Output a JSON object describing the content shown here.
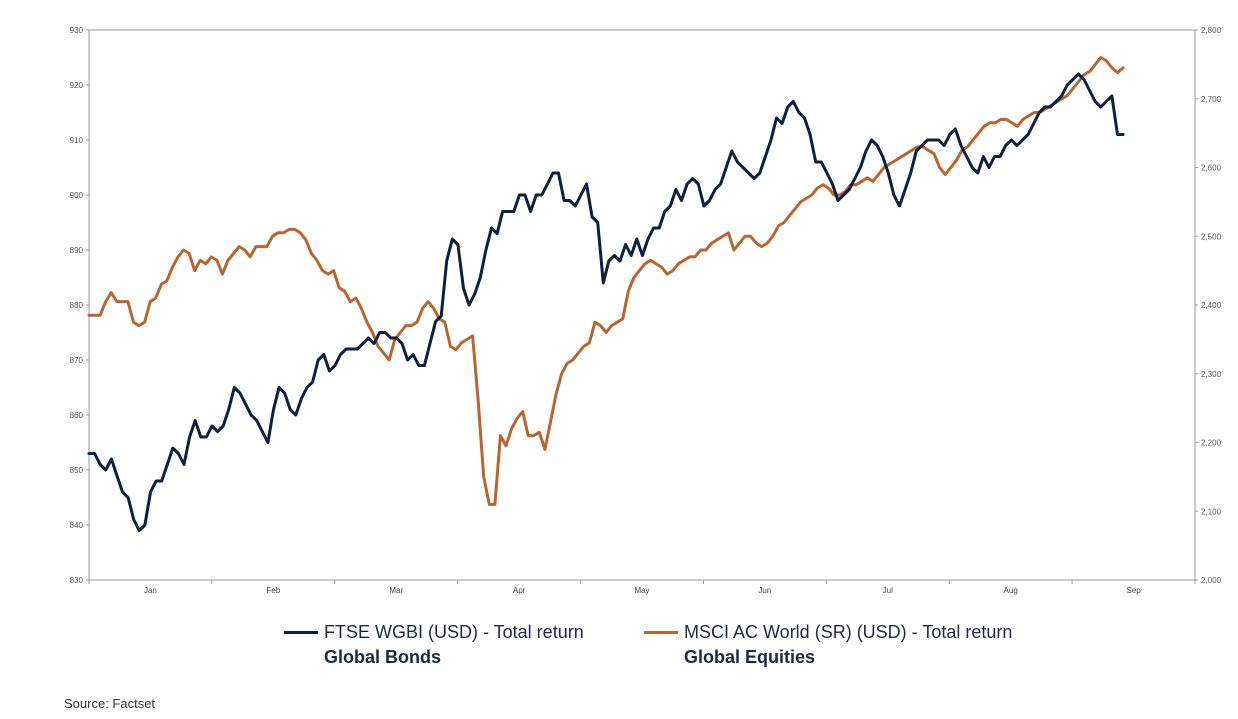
{
  "chart_data": {
    "type": "line",
    "title": "",
    "x_labels": [
      "Jan",
      "Feb",
      "Mar",
      "Apr",
      "May",
      "Jun",
      "Jul",
      "Aug",
      "Sep"
    ],
    "left_axis": {
      "ylim": [
        830,
        930
      ],
      "ticks": [
        830,
        840,
        850,
        860,
        870,
        880,
        890,
        900,
        910,
        920,
        930
      ]
    },
    "right_axis": {
      "ylim": [
        2000,
        2800
      ],
      "ticks": [
        "2,000",
        "2,100",
        "2,200",
        "2,300",
        "2,400",
        "2,500",
        "2,600",
        "2,700",
        "2,800"
      ]
    },
    "grid": false,
    "series": [
      {
        "name": "FTSE WGBI (USD) - Total return",
        "group": "Global Bonds",
        "axis": "left",
        "color": "#0e1f3f",
        "values": [
          853,
          853,
          851,
          850,
          852,
          849,
          846,
          845,
          841,
          839,
          840,
          846,
          848,
          848,
          851,
          854,
          853,
          851,
          856,
          859,
          856,
          856,
          858,
          857,
          858,
          861,
          865,
          864,
          862,
          860,
          859,
          857,
          855,
          861,
          865,
          864,
          861,
          860,
          863,
          865,
          866,
          870,
          871,
          868,
          869,
          871,
          872,
          872,
          872,
          873,
          874,
          873,
          875,
          875,
          874,
          874,
          873,
          870,
          871,
          869,
          869,
          873,
          877,
          878,
          888,
          892,
          891,
          883,
          880,
          882,
          885,
          890,
          894,
          893,
          897,
          897,
          897,
          900,
          900,
          897,
          900,
          900,
          902,
          904,
          904,
          899,
          899,
          898,
          900,
          902,
          896,
          895,
          884,
          888,
          889,
          888,
          891,
          889,
          892,
          889,
          892,
          894,
          894,
          897,
          898,
          901,
          899,
          902,
          903,
          902,
          898,
          899,
          901,
          902,
          905,
          908,
          906,
          905,
          904,
          903,
          904,
          907,
          910,
          914,
          913,
          916,
          917,
          915,
          914,
          911,
          906,
          906,
          904,
          902,
          899,
          900,
          901,
          903,
          905,
          908,
          910,
          909,
          907,
          904,
          900,
          898,
          901,
          904,
          908,
          909,
          910,
          910,
          910,
          909,
          911,
          912,
          909,
          907,
          905,
          904,
          907,
          905,
          907,
          907,
          909,
          910,
          909,
          910,
          911,
          913,
          915,
          916,
          916,
          917,
          918,
          920,
          921,
          922,
          921,
          919,
          917,
          916,
          917,
          918,
          911,
          911
        ]
      },
      {
        "name": "MSCI AC World (SR) (USD) - Total return",
        "group": "Global Equities",
        "axis": "right",
        "color": "#b8662f",
        "values": [
          2385,
          2385,
          2385,
          2405,
          2418,
          2405,
          2405,
          2405,
          2375,
          2370,
          2375,
          2405,
          2410,
          2430,
          2435,
          2455,
          2470,
          2480,
          2475,
          2450,
          2465,
          2460,
          2470,
          2465,
          2445,
          2465,
          2475,
          2485,
          2480,
          2470,
          2485,
          2485,
          2485,
          2500,
          2505,
          2505,
          2510,
          2510,
          2505,
          2495,
          2475,
          2465,
          2450,
          2445,
          2450,
          2425,
          2420,
          2405,
          2410,
          2395,
          2375,
          2360,
          2340,
          2330,
          2320,
          2350,
          2360,
          2370,
          2370,
          2375,
          2395,
          2405,
          2395,
          2380,
          2375,
          2340,
          2335,
          2345,
          2350,
          2355,
          2260,
          2150,
          2110,
          2110,
          2210,
          2195,
          2220,
          2235,
          2245,
          2210,
          2210,
          2215,
          2190,
          2230,
          2270,
          2300,
          2315,
          2320,
          2330,
          2340,
          2345,
          2375,
          2370,
          2360,
          2370,
          2375,
          2380,
          2420,
          2440,
          2450,
          2460,
          2465,
          2460,
          2455,
          2445,
          2450,
          2460,
          2465,
          2470,
          2470,
          2480,
          2480,
          2490,
          2495,
          2500,
          2505,
          2480,
          2490,
          2500,
          2500,
          2490,
          2485,
          2490,
          2500,
          2515,
          2520,
          2530,
          2540,
          2550,
          2555,
          2560,
          2570,
          2575,
          2570,
          2560,
          2560,
          2565,
          2575,
          2575,
          2580,
          2585,
          2580,
          2590,
          2600,
          2605,
          2610,
          2615,
          2620,
          2625,
          2630,
          2630,
          2625,
          2620,
          2600,
          2590,
          2600,
          2610,
          2625,
          2630,
          2640,
          2650,
          2660,
          2665,
          2665,
          2670,
          2670,
          2665,
          2660,
          2670,
          2675,
          2680,
          2680,
          2685,
          2690,
          2695,
          2700,
          2705,
          2715,
          2725,
          2735,
          2740,
          2750,
          2760,
          2755,
          2745,
          2738,
          2745
        ]
      }
    ]
  },
  "source": "Source: Factset"
}
